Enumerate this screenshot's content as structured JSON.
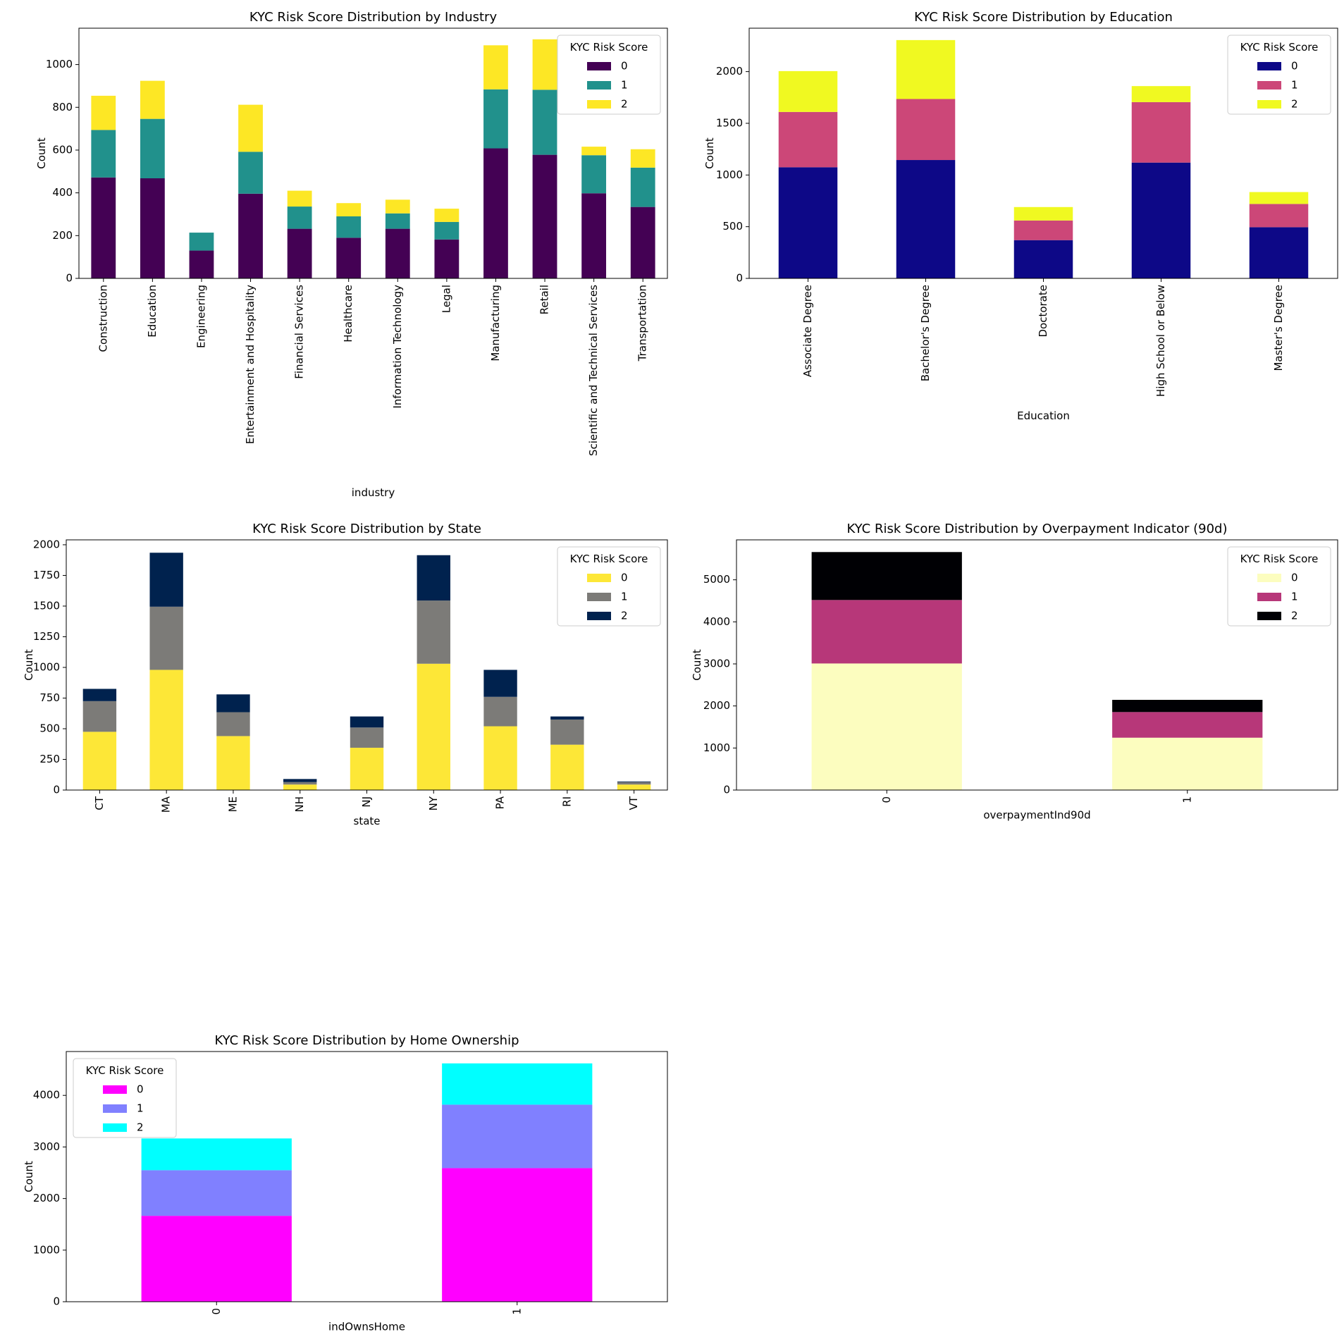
{
  "figure": {
    "background": "#ffffff"
  },
  "chart_data": [
    {
      "type": "bar",
      "stacked": true,
      "title": "KYC Risk Score Distribution by Industry",
      "xlabel": "industry",
      "ylabel": "Count",
      "categories": [
        "Construction",
        "Education",
        "Engineering",
        "Entertainment and Hospitality",
        "Financial Services",
        "Healthcare",
        "Information Technology",
        "Legal",
        "Manufacturing",
        "Retail",
        "Scientific and Technical Services",
        "Transportation"
      ],
      "series": [
        {
          "name": "0",
          "color": "#440154",
          "values": [
            472,
            468,
            130,
            396,
            232,
            190,
            232,
            182,
            608,
            578,
            398,
            334
          ]
        },
        {
          "name": "1",
          "color": "#21918c",
          "values": [
            222,
            278,
            84,
            196,
            104,
            100,
            72,
            82,
            276,
            304,
            178,
            184
          ]
        },
        {
          "name": "2",
          "color": "#fde725",
          "values": [
            160,
            178,
            0,
            220,
            74,
            62,
            64,
            62,
            206,
            236,
            40,
            86
          ]
        }
      ],
      "ylim": [
        0,
        1170
      ],
      "yticks": [
        0,
        200,
        400,
        600,
        800,
        1000
      ],
      "xtick_rotation": 90,
      "grid": false,
      "legend": {
        "title": "KYC Risk Score",
        "placement": "top-right"
      }
    },
    {
      "type": "bar",
      "stacked": true,
      "title": "KYC Risk Score Distribution by Education",
      "xlabel": "Education",
      "ylabel": "Count",
      "categories": [
        "Associate Degree",
        "Bachelor's Degree",
        "Doctorate",
        "High School or Below",
        "Master's Degree"
      ],
      "series": [
        {
          "name": "0",
          "color": "#0d0887",
          "values": [
            1075,
            1145,
            370,
            1120,
            495
          ]
        },
        {
          "name": "1",
          "color": "#cc4778",
          "values": [
            535,
            590,
            190,
            585,
            225
          ]
        },
        {
          "name": "2",
          "color": "#f0f921",
          "values": [
            395,
            570,
            130,
            155,
            115
          ]
        }
      ],
      "ylim": [
        0,
        2420
      ],
      "yticks": [
        0,
        500,
        1000,
        1500,
        2000
      ],
      "xtick_rotation": 90,
      "grid": false,
      "legend": {
        "title": "KYC Risk Score",
        "placement": "top-right"
      }
    },
    {
      "type": "bar",
      "stacked": true,
      "title": "KYC Risk Score Distribution by State",
      "xlabel": "state",
      "ylabel": "Count",
      "categories": [
        "CT",
        "MA",
        "ME",
        "NH",
        "NJ",
        "NY",
        "PA",
        "RI",
        "VT"
      ],
      "series": [
        {
          "name": "0",
          "color": "#fde737",
          "values": [
            475,
            980,
            440,
            45,
            345,
            1030,
            520,
            370,
            45
          ]
        },
        {
          "name": "1",
          "color": "#7c7b78",
          "values": [
            250,
            515,
            195,
            20,
            165,
            515,
            240,
            205,
            20
          ]
        },
        {
          "name": "2",
          "color": "#00224e",
          "values": [
            100,
            440,
            145,
            25,
            90,
            370,
            220,
            25,
            5
          ]
        }
      ],
      "ylim": [
        0,
        2040
      ],
      "yticks": [
        0,
        250,
        500,
        750,
        1000,
        1250,
        1500,
        1750,
        2000
      ],
      "xtick_rotation": 90,
      "grid": false,
      "legend": {
        "title": "KYC Risk Score",
        "placement": "top-right"
      }
    },
    {
      "type": "bar",
      "stacked": true,
      "title": "KYC Risk Score Distribution by Overpayment Indicator (90d)",
      "xlabel": "overpaymentInd90d",
      "ylabel": "Count",
      "categories": [
        "0",
        "1"
      ],
      "series": [
        {
          "name": "0",
          "color": "#fcfdbf",
          "values": [
            3010,
            1245
          ]
        },
        {
          "name": "1",
          "color": "#b73779",
          "values": [
            1510,
            610
          ]
        },
        {
          "name": "2",
          "color": "#000004",
          "values": [
            1140,
            290
          ]
        }
      ],
      "ylim": [
        0,
        5950
      ],
      "yticks": [
        0,
        1000,
        2000,
        3000,
        4000,
        5000
      ],
      "xtick_rotation": 90,
      "grid": false,
      "legend": {
        "title": "KYC Risk Score",
        "placement": "top-right"
      }
    },
    {
      "type": "bar",
      "stacked": true,
      "title": "KYC Risk Score Distribution by Home Ownership",
      "xlabel": "indOwnsHome",
      "ylabel": "Count",
      "categories": [
        "0",
        "1"
      ],
      "series": [
        {
          "name": "0",
          "color": "#ff00ff",
          "values": [
            1665,
            2590
          ]
        },
        {
          "name": "1",
          "color": "#8080ff",
          "values": [
            885,
            1230
          ]
        },
        {
          "name": "2",
          "color": "#00ffff",
          "values": [
            615,
            800
          ]
        }
      ],
      "ylim": [
        0,
        4850
      ],
      "yticks": [
        0,
        1000,
        2000,
        3000,
        4000
      ],
      "xtick_rotation": 90,
      "grid": false,
      "legend": {
        "title": "KYC Risk Score",
        "placement": "top-left"
      }
    }
  ]
}
